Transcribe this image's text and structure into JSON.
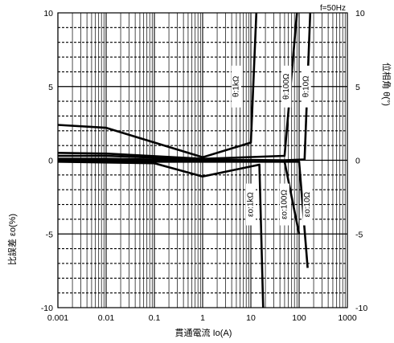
{
  "chart_data": {
    "type": "line",
    "annotation_top_right": "f=50Hz",
    "xlabel": "貫通電流 Io(A)",
    "ylabel_left": "比誤差 εo(%)",
    "ylabel_right": "位相角 θ(°)",
    "x_scale": "log",
    "xlim": [
      0.001,
      1000
    ],
    "ylim_left": [
      -10,
      10
    ],
    "ylim_right": [
      -10,
      10
    ],
    "grid": true,
    "x_ticks": [
      0.001,
      0.01,
      0.1,
      1,
      10,
      100,
      1000
    ],
    "x_tick_labels": [
      "0.001",
      "0.01",
      "0.1",
      "1",
      "10",
      "100",
      "1000"
    ],
    "y_ticks": [
      -10,
      -5,
      0,
      5,
      10
    ],
    "y_tick_labels": [
      "-10",
      "-5",
      "0",
      "5",
      "10"
    ],
    "series": [
      {
        "name": "θ:1kΩ",
        "label_at": [
          5,
          5
        ],
        "points": [
          [
            0.001,
            2.4
          ],
          [
            0.01,
            2.2
          ],
          [
            1,
            0.2
          ],
          [
            10,
            1.2
          ],
          [
            13,
            10
          ]
        ]
      },
      {
        "name": "θ:100Ω",
        "label_at": [
          55,
          5
        ],
        "points": [
          [
            0.001,
            0.5
          ],
          [
            0.01,
            0.45
          ],
          [
            1,
            0.1
          ],
          [
            50,
            0.3
          ],
          [
            90,
            10
          ]
        ]
      },
      {
        "name": "θ:10Ω",
        "label_at": [
          140,
          5
        ],
        "points": [
          [
            0.001,
            0.3
          ],
          [
            0.01,
            0.3
          ],
          [
            1,
            0.05
          ],
          [
            50,
            0.0
          ],
          [
            130,
            0.05
          ],
          [
            170,
            10
          ]
        ]
      },
      {
        "name": "εo:1kΩ",
        "label_at": [
          10,
          -3
        ],
        "points": [
          [
            0.001,
            -0.1
          ],
          [
            0.1,
            -0.2
          ],
          [
            1,
            -1.1
          ],
          [
            15,
            -0.3
          ],
          [
            18,
            -10
          ]
        ]
      },
      {
        "name": "εo:100Ω",
        "label_at": [
          50,
          -3
        ],
        "points": [
          [
            0.001,
            0.1
          ],
          [
            0.01,
            0.1
          ],
          [
            1,
            0.0
          ],
          [
            50,
            -0.1
          ],
          [
            100,
            -5
          ]
        ]
      },
      {
        "name": "εo:10Ω",
        "label_at": [
          150,
          -3
        ],
        "points": [
          [
            0.001,
            0.0
          ],
          [
            0.1,
            -0.1
          ],
          [
            1,
            -0.1
          ],
          [
            100,
            -0.1
          ],
          [
            150,
            -7.3
          ]
        ]
      }
    ]
  }
}
